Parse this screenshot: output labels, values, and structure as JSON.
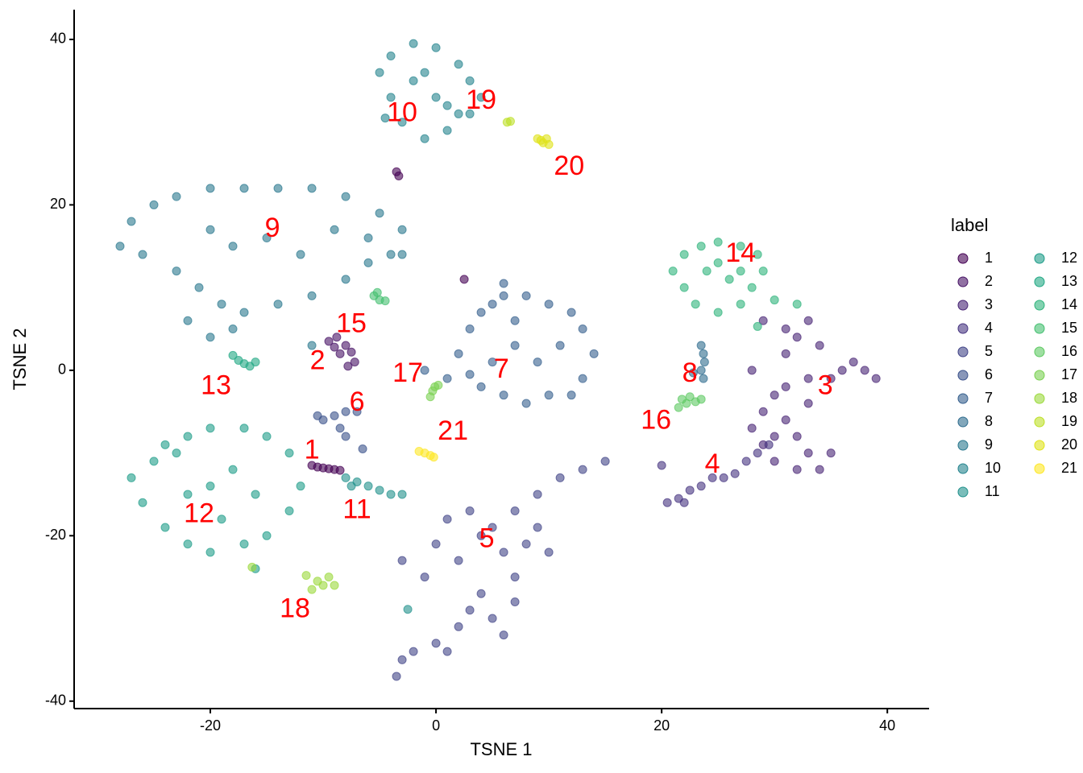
{
  "chart_data": {
    "type": "scatter",
    "xlabel": "TSNE 1",
    "ylabel": "TSNE 2",
    "legend_title": "label",
    "legend_position": "right",
    "xlim": [
      -32.07,
      43.7
    ],
    "ylim": [
      -40.9,
      43.6
    ],
    "xticks": [
      -20,
      0,
      20,
      40
    ],
    "yticks": [
      -40,
      -20,
      0,
      20,
      40
    ],
    "grid": false,
    "annotation_color": "#ff0000",
    "series": [
      {
        "name": "1",
        "color": "#440154",
        "x": [
          -11,
          -10.5,
          -10,
          -9.5,
          -9,
          -8.5,
          -3.5,
          -3.3,
          2.5
        ],
        "y": [
          -11.5,
          -11.7,
          -11.8,
          -11.9,
          -12,
          -12.1,
          24,
          23.5,
          11
        ]
      },
      {
        "name": "2",
        "color": "#471365",
        "x": [
          -9.5,
          -9,
          -8.5,
          -8,
          -7.5,
          -7.2,
          -8.8,
          -7.8
        ],
        "y": [
          3.5,
          2.8,
          2,
          3,
          2.2,
          1,
          4,
          0.5
        ]
      },
      {
        "name": "3",
        "color": "#482475",
        "x": [
          28,
          30,
          31,
          32,
          33,
          34,
          32,
          30,
          29,
          31,
          32,
          33,
          34,
          35,
          36,
          38,
          39,
          37,
          33,
          31,
          29,
          28,
          30,
          35,
          33,
          29,
          31
        ],
        "y": [
          0,
          -3,
          -6,
          -8,
          -10,
          -12,
          -12,
          -8,
          -5,
          2,
          4,
          6,
          3,
          -1,
          0,
          0,
          -1,
          1,
          -1,
          -2,
          -9,
          -7,
          -11,
          -10,
          -4,
          6,
          5
        ]
      },
      {
        "name": "4",
        "color": "#463480",
        "x": [
          20.5,
          21.5,
          22.5,
          23.5,
          24.5,
          25.5,
          26.5,
          27.5,
          28.5,
          29.5,
          22,
          20
        ],
        "y": [
          -16,
          -15.5,
          -14.5,
          -14,
          -13,
          -13,
          -12.5,
          -11,
          -10,
          -9,
          -16,
          -11.5
        ]
      },
      {
        "name": "5",
        "color": "#414487",
        "x": [
          -3,
          -2,
          0,
          1,
          2,
          3,
          4,
          5,
          6,
          7,
          7,
          6,
          5,
          3,
          1,
          0,
          2,
          4,
          7,
          9,
          10,
          9,
          11,
          13,
          15,
          -3,
          -1,
          -3.5,
          8
        ],
        "y": [
          -35,
          -34,
          -33,
          -34,
          -31,
          -29,
          -27,
          -30,
          -32,
          -28,
          -25,
          -22,
          -19,
          -17,
          -18,
          -21,
          -23,
          -20,
          -17,
          -19,
          -22,
          -15,
          -13,
          -12,
          -11,
          -23,
          -25,
          -37,
          -21
        ]
      },
      {
        "name": "6",
        "color": "#3b528b",
        "x": [
          -10.5,
          -9,
          -8,
          -7,
          -8.5,
          -8,
          -6.5,
          -10
        ],
        "y": [
          -5.5,
          -5.5,
          -5,
          -5,
          -7,
          -8,
          -9.5,
          -6
        ]
      },
      {
        "name": "7",
        "color": "#355f8d",
        "x": [
          1,
          2,
          3,
          4,
          5,
          6,
          8,
          10,
          12,
          13,
          14,
          13,
          12,
          10,
          8,
          6,
          4,
          7,
          9,
          5,
          11,
          7,
          3,
          -1,
          6
        ],
        "y": [
          -1,
          2,
          5,
          7,
          8,
          9,
          9,
          8,
          7,
          5,
          2,
          -1,
          -3,
          -3,
          -4,
          -3,
          -2,
          3,
          1,
          1,
          3,
          6,
          -0.5,
          0,
          10.5
        ]
      },
      {
        "name": "8",
        "color": "#2f6c8e",
        "x": [
          23.5,
          23.7,
          23.8,
          23.5,
          23.7,
          22.8
        ],
        "y": [
          3,
          2,
          1,
          0,
          -1,
          -0.3
        ]
      },
      {
        "name": "9",
        "color": "#2a788e",
        "x": [
          -28,
          -27,
          -25,
          -23,
          -20,
          -17,
          -14,
          -11,
          -8,
          -5,
          -3,
          -4,
          -6,
          -8,
          -11,
          -14,
          -17,
          -19,
          -21,
          -23,
          -26,
          -18,
          -15,
          -12,
          -9,
          -6,
          -20,
          -22,
          -20,
          -18,
          -11,
          -3
        ],
        "y": [
          15,
          18,
          20,
          21,
          22,
          22,
          22,
          22,
          21,
          19,
          17,
          14,
          13,
          11,
          9,
          8,
          7,
          8,
          10,
          12,
          14,
          15,
          16,
          14,
          17,
          16,
          17,
          6,
          4,
          5,
          3,
          14
        ]
      },
      {
        "name": "10",
        "color": "#25848e",
        "x": [
          -5,
          -4,
          -2,
          0,
          2,
          3,
          4,
          3,
          1,
          -1,
          -3,
          -4,
          -2,
          0,
          2,
          -1,
          -4.5,
          1
        ],
        "y": [
          36,
          38,
          39.5,
          39,
          37,
          35,
          33,
          31,
          29,
          28,
          30,
          33,
          35,
          33,
          31,
          36,
          30.5,
          32
        ]
      },
      {
        "name": "11",
        "color": "#21918c",
        "x": [
          -8,
          -7,
          -6,
          -5,
          -4,
          -3,
          -7.5,
          -2.5
        ],
        "y": [
          -13,
          -13.5,
          -14,
          -14.5,
          -15,
          -15,
          -14,
          -28.9
        ]
      },
      {
        "name": "12",
        "color": "#1e9c89",
        "x": [
          -27,
          -26,
          -24,
          -22,
          -20,
          -17,
          -15,
          -13,
          -12,
          -13,
          -15,
          -17,
          -20,
          -22,
          -24,
          -25,
          -20,
          -18,
          -16,
          -22,
          -19,
          -16,
          -23
        ],
        "y": [
          -13,
          -16,
          -19,
          -21,
          -22,
          -21,
          -20,
          -17,
          -14,
          -10,
          -8,
          -7,
          -7,
          -8,
          -9,
          -11,
          -14,
          -12,
          -15,
          -15,
          -18,
          -24,
          -10
        ]
      },
      {
        "name": "13",
        "color": "#22a884",
        "x": [
          -18,
          -17.5,
          -17,
          -16.5,
          -16
        ],
        "y": [
          1.8,
          1.2,
          0.8,
          0.5,
          1
        ]
      },
      {
        "name": "14",
        "color": "#2fb47c",
        "x": [
          21,
          22,
          23.5,
          25,
          27,
          28.5,
          29,
          28,
          27,
          25,
          23,
          22,
          24,
          26,
          25,
          27,
          28.5,
          30,
          32
        ],
        "y": [
          12,
          14,
          15,
          15.5,
          15,
          14,
          12,
          10,
          8,
          7,
          8,
          10,
          12,
          11,
          13,
          12,
          5.3,
          8.5,
          8
        ]
      },
      {
        "name": "15",
        "color": "#44bf70",
        "x": [
          -5.5,
          -5,
          -4.5,
          -5.2
        ],
        "y": [
          9,
          8.5,
          8.4,
          9.4
        ]
      },
      {
        "name": "16",
        "color": "#5ec962",
        "x": [
          21.8,
          22.5,
          23,
          21.5,
          22.2,
          23.5
        ],
        "y": [
          -3.5,
          -3.2,
          -3.8,
          -4.5,
          -4,
          -3.5
        ]
      },
      {
        "name": "17",
        "color": "#7ad151",
        "x": [
          -0.5,
          -0.3,
          -0.1,
          0.2
        ],
        "y": [
          -3.2,
          -2.5,
          -2,
          -1.8
        ]
      },
      {
        "name": "18",
        "color": "#9bd93c",
        "x": [
          -11,
          -10.5,
          -10,
          -9.5,
          -9,
          -11.5,
          -16.3
        ],
        "y": [
          -26.5,
          -25.5,
          -26,
          -25,
          -26,
          -24.8,
          -23.8
        ]
      },
      {
        "name": "19",
        "color": "#bddf26",
        "x": [
          6.3,
          6.6
        ],
        "y": [
          30,
          30.1
        ]
      },
      {
        "name": "20",
        "color": "#dfe318",
        "x": [
          9,
          9.5,
          10,
          9.3,
          9.8
        ],
        "y": [
          28,
          27.5,
          27.3,
          27.8,
          28
        ]
      },
      {
        "name": "21",
        "color": "#fde725",
        "x": [
          -1.5,
          -1,
          -0.5,
          -0.2
        ],
        "y": [
          -9.8,
          -10,
          -10.3,
          -10.5
        ]
      }
    ],
    "annotations": [
      {
        "text": "1",
        "x": -11,
        "y": -9.8
      },
      {
        "text": "2",
        "x": -10.5,
        "y": 1
      },
      {
        "text": "3",
        "x": 34.5,
        "y": -2
      },
      {
        "text": "4",
        "x": 24.5,
        "y": -11.5
      },
      {
        "text": "5",
        "x": 4.5,
        "y": -20.5
      },
      {
        "text": "6",
        "x": -7,
        "y": -4
      },
      {
        "text": "7",
        "x": 5.8,
        "y": 0
      },
      {
        "text": "8",
        "x": 22.5,
        "y": -0.5
      },
      {
        "text": "9",
        "x": -14.5,
        "y": 17
      },
      {
        "text": "10",
        "x": -3,
        "y": 31
      },
      {
        "text": "11",
        "x": -7,
        "y": -17
      },
      {
        "text": "12",
        "x": -21,
        "y": -17.5
      },
      {
        "text": "13",
        "x": -19.5,
        "y": -2
      },
      {
        "text": "14",
        "x": 27,
        "y": 14
      },
      {
        "text": "15",
        "x": -7.5,
        "y": 5.5
      },
      {
        "text": "16",
        "x": 19.5,
        "y": -6.2
      },
      {
        "text": "17",
        "x": -2.5,
        "y": -0.5
      },
      {
        "text": "18",
        "x": -12.5,
        "y": -29
      },
      {
        "text": "19",
        "x": 4,
        "y": 32.5
      },
      {
        "text": "20",
        "x": 11.8,
        "y": 24.5
      },
      {
        "text": "21",
        "x": 1.5,
        "y": -7.5
      }
    ]
  }
}
